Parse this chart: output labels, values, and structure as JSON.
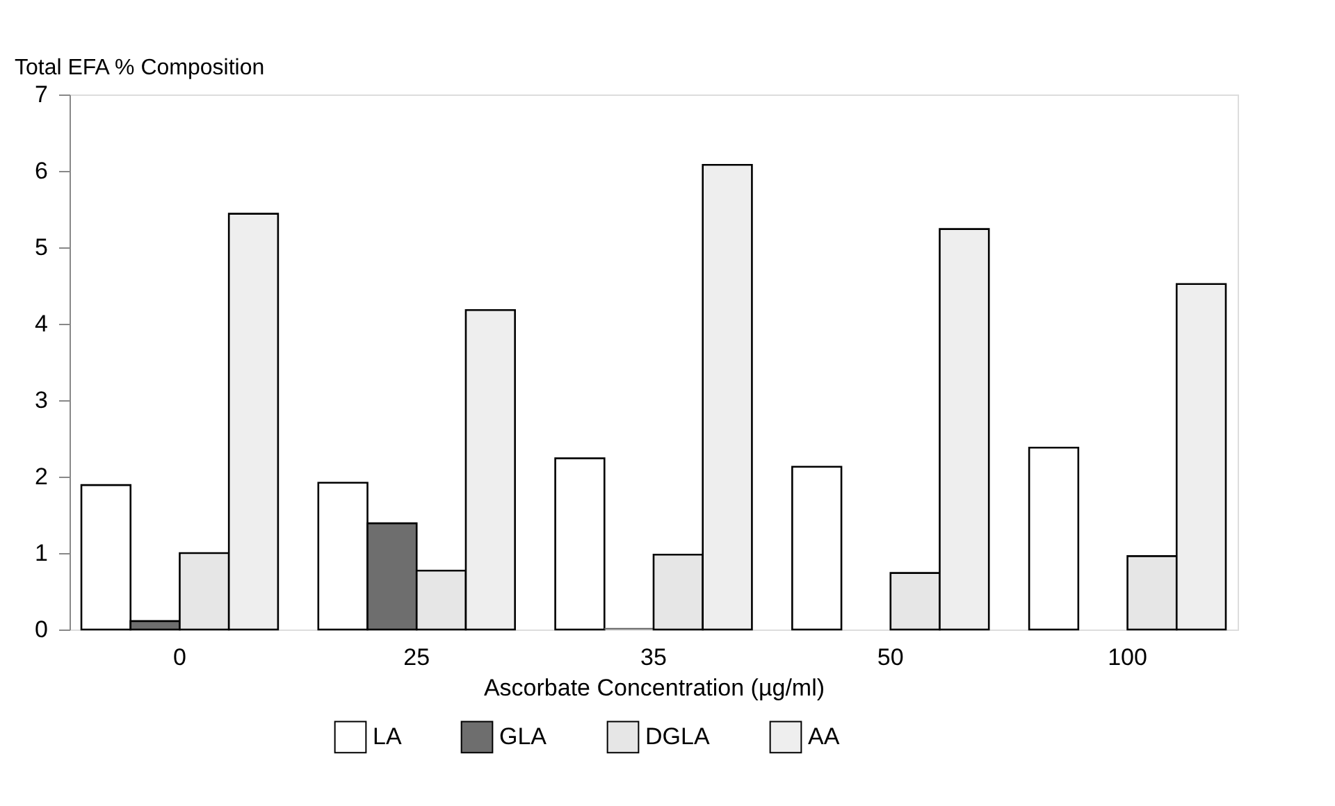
{
  "chart_data": {
    "type": "bar",
    "ylabel": "Total EFA % Composition",
    "xlabel": "Ascorbate Concentration  (µg/ml)",
    "categories": [
      "0",
      "25",
      "35",
      "50",
      "100"
    ],
    "series": [
      {
        "name": "LA",
        "color": "#ffffff",
        "values": [
          1.89,
          1.92,
          2.24,
          2.13,
          2.38
        ]
      },
      {
        "name": "GLA",
        "color": "#6e6e6e",
        "values": [
          0.11,
          1.39,
          0.02,
          0,
          0
        ]
      },
      {
        "name": "DGLA",
        "color": "#e6e6e6",
        "values": [
          1.0,
          0.77,
          0.98,
          0.74,
          0.96
        ]
      },
      {
        "name": "AA",
        "color": "#eeeeee",
        "values": [
          5.44,
          4.18,
          6.08,
          5.24,
          4.52
        ]
      }
    ],
    "ylim": [
      0,
      7
    ],
    "yticks": [
      0,
      1,
      2,
      3,
      4,
      5,
      6,
      7
    ],
    "grid": false,
    "legend": "bottom"
  }
}
